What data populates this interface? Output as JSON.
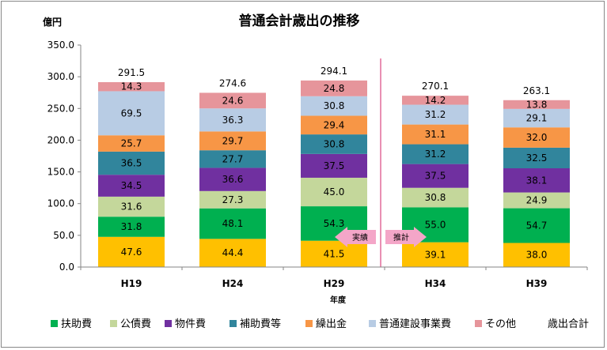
{
  "chart_data": {
    "type": "bar",
    "stacked": true,
    "title": "普通会計歳出の推移",
    "unit_label": "億円",
    "xlabel": "年度",
    "ylabel": "",
    "ylim": [
      0,
      350
    ],
    "yticks": [
      "0.0",
      "50.0",
      "100.0",
      "150.0",
      "200.0",
      "250.0",
      "300.0",
      "350.0"
    ],
    "categories": [
      "H19",
      "H24",
      "H29",
      "H34",
      "H39"
    ],
    "series": [
      {
        "name": "扶助費",
        "color": "#00b050",
        "values": [
          "31.8",
          "48.1",
          "54.3",
          "55.0",
          "54.7"
        ]
      },
      {
        "name": "公債費",
        "color": "#c4d79b",
        "values": [
          "31.6",
          "27.3",
          "45.0",
          "30.8",
          "24.9"
        ]
      },
      {
        "name": "物件費",
        "color": "#7030a0",
        "values": [
          "34.5",
          "36.6",
          "37.5",
          "37.5",
          "38.1"
        ]
      },
      {
        "name": "補助費等",
        "color": "#31859c",
        "values": [
          "36.5",
          "27.7",
          "30.8",
          "31.2",
          "32.5"
        ]
      },
      {
        "name": "繰出金",
        "color": "#f79646",
        "values": [
          "25.7",
          "29.7",
          "29.4",
          "31.1",
          "32.0"
        ]
      },
      {
        "name": "普通建設事業費",
        "color": "#b8cce4",
        "values": [
          "69.5",
          "36.3",
          "30.8",
          "31.2",
          "29.1"
        ]
      },
      {
        "name": "その他",
        "color": "#e6959b",
        "values": [
          "14.3",
          "24.6",
          "24.8",
          "14.2",
          "13.8"
        ]
      }
    ],
    "base_series": {
      "color": "#ffc000",
      "values": [
        "47.6",
        "44.4",
        "41.5",
        "39.1",
        "38.0"
      ]
    },
    "totals": {
      "name": "歳出合計",
      "values": [
        "291.5",
        "274.6",
        "294.1",
        "270.1",
        "263.1"
      ]
    },
    "divider_after_category": "H29",
    "annotations": {
      "left_arrow": "実績",
      "right_arrow": "推計"
    },
    "grid": false,
    "legend_position": "bottom"
  },
  "colors": {
    "divider": "#e26b9a",
    "arrow": "#f4a6c8"
  }
}
